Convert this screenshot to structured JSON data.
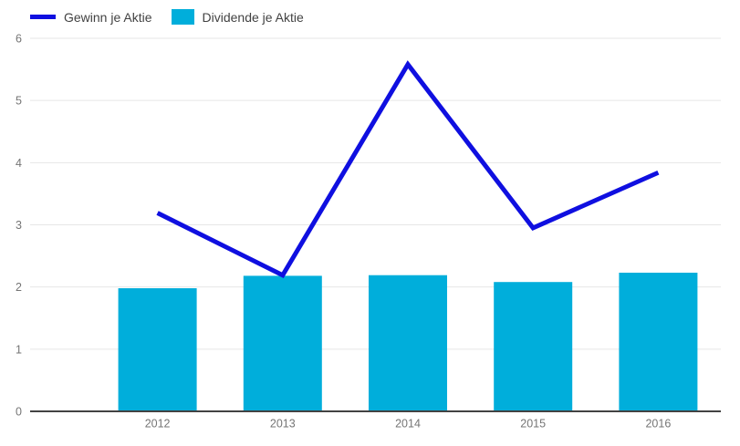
{
  "chart_data": {
    "type": "combo",
    "title": "",
    "xlabel": "",
    "ylabel": "",
    "categories": [
      "2012",
      "2013",
      "2014",
      "2015",
      "2016"
    ],
    "series": [
      {
        "name": "Gewinn je Aktie",
        "type": "line",
        "color": "#0f0fe0",
        "values": [
          3.19,
          2.19,
          5.58,
          2.95,
          3.84
        ]
      },
      {
        "name": "Dividende je Aktie",
        "type": "bar",
        "color": "#00aedb",
        "values": [
          1.98,
          2.18,
          2.19,
          2.08,
          2.23
        ]
      }
    ],
    "ylim": [
      0,
      6
    ],
    "yticks": [
      0,
      1,
      2,
      3,
      4,
      5,
      6
    ],
    "grid": true,
    "legend_position": "top-left"
  },
  "colors": {
    "background": "#ffffff",
    "grid_line": "#e6e6e6",
    "axis_baseline": "#424242",
    "tick_label": "#757575",
    "legend_text": "#424242"
  }
}
